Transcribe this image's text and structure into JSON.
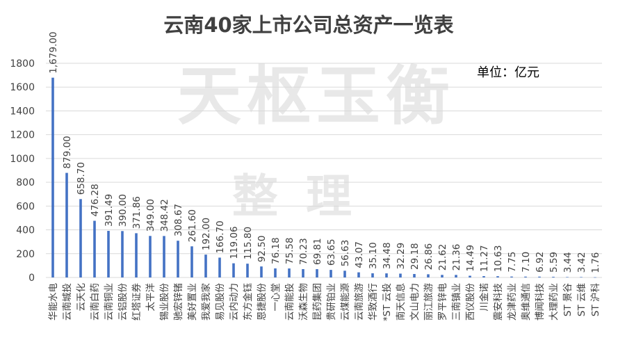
{
  "chart_data": {
    "type": "bar",
    "title": "云南40家上市公司总资产一览表",
    "unit_label": "单位：亿元",
    "watermark": [
      "天枢玉衡",
      "整理"
    ],
    "ylim": [
      0,
      1800
    ],
    "yticks": [
      0,
      200,
      400,
      600,
      800,
      1000,
      1200,
      1400,
      1600,
      1800
    ],
    "grid": true,
    "bar_color": "#4472c4",
    "categories": [
      "华能水电",
      "云南城投",
      "云天化",
      "云南白药",
      "云南铜业",
      "云铝股份",
      "红塔证券",
      "太平洋",
      "锡业股份",
      "驰宏锌锗",
      "美好置业",
      "我爱我家",
      "易见股份",
      "云内动力",
      "东方金钰",
      "恩捷股份",
      "一心堂",
      "云南能投",
      "沃森生物",
      "昆药集团",
      "贵研铂业",
      "云煤能源",
      "云南旅游",
      "华致酒行",
      "*ST 云投",
      "南天信息",
      "文山电力",
      "丽江旅游",
      "罗平锌电",
      "三南镇业",
      "西仪股份",
      "川金诺",
      "震安科技",
      "龙津药业",
      "奥维通信",
      "博闻科技",
      "大理药业",
      "ST 景谷",
      "ST 云维",
      "ST 沪科"
    ],
    "values": [
      1679.0,
      879.0,
      658.7,
      476.28,
      391.49,
      390.0,
      371.86,
      349.0,
      348.42,
      308.67,
      261.6,
      192.0,
      166.7,
      119.06,
      115.8,
      92.5,
      76.18,
      75.58,
      70.23,
      69.81,
      63.65,
      56.63,
      43.07,
      35.1,
      34.48,
      32.29,
      29.18,
      26.86,
      21.62,
      21.36,
      14.49,
      11.27,
      10.63,
      7.75,
      7.1,
      6.92,
      5.59,
      3.44,
      3.42,
      1.76
    ],
    "value_labels": [
      "1,679.00",
      "879.00",
      "658.70",
      "476.28",
      "391.49",
      "390.00",
      "371.86",
      "349.00",
      "348.42",
      "308.67",
      "261.60",
      "192.00",
      "166.70",
      "119.06",
      "115.80",
      "92.50",
      "76.18",
      "75.58",
      "70.23",
      "69.81",
      "63.65",
      "56.63",
      "43.07",
      "35.10",
      "34.48",
      "32.29",
      "29.18",
      "26.86",
      "21.62",
      "21.36",
      "14.49",
      "11.27",
      "10.63",
      "7.75",
      "7.10",
      "6.92",
      "5.59",
      "3.44",
      "3.42",
      "1.76"
    ]
  }
}
